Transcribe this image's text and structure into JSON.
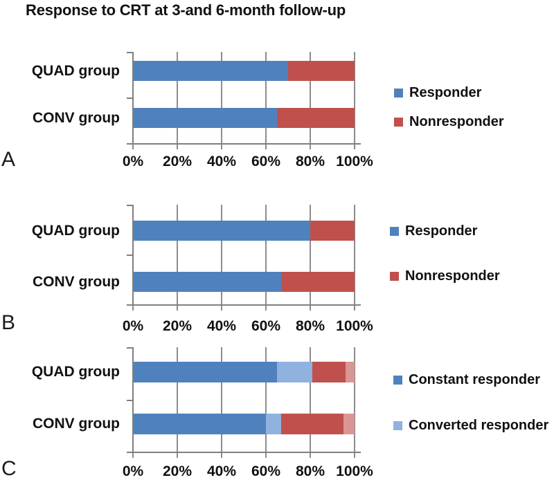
{
  "title": "Response to CRT at 3-and 6-month follow-up",
  "colors": {
    "responder_blue": "#4F81BD",
    "nonresponder_red": "#C0504D",
    "converted_light_blue": "#8FB2DE",
    "light_red": "#D99694",
    "gridline": "#8C8C8C",
    "axis": "#7F7F7F",
    "text": "#111111"
  },
  "chart_data": [
    {
      "panel": "A",
      "type": "bar",
      "orientation": "horizontal",
      "stacked": true,
      "categories": [
        "QUAD group",
        "CONV group"
      ],
      "xlim": [
        0,
        100
      ],
      "x_ticks": [
        "0%",
        "20%",
        "40%",
        "60%",
        "80%",
        "100%"
      ],
      "grid": true,
      "legend_position": "right",
      "series": [
        {
          "name": "Responder",
          "color": "#4F81BD",
          "values": [
            70,
            65
          ]
        },
        {
          "name": "Nonresponder",
          "color": "#C0504D",
          "values": [
            30,
            35
          ]
        }
      ],
      "legend": [
        {
          "label": "Responder",
          "color": "#4F81BD"
        },
        {
          "label": "Nonresponder",
          "color": "#C0504D"
        }
      ]
    },
    {
      "panel": "B",
      "type": "bar",
      "orientation": "horizontal",
      "stacked": true,
      "categories": [
        "QUAD group",
        "CONV group"
      ],
      "xlim": [
        0,
        100
      ],
      "x_ticks": [
        "0%",
        "20%",
        "40%",
        "60%",
        "80%",
        "100%"
      ],
      "grid": true,
      "legend_position": "right",
      "series": [
        {
          "name": "Responder",
          "color": "#4F81BD",
          "values": [
            80,
            67
          ]
        },
        {
          "name": "Nonresponder",
          "color": "#C0504D",
          "values": [
            20,
            33
          ]
        }
      ],
      "legend": [
        {
          "label": "Responder",
          "color": "#4F81BD"
        },
        {
          "label": "Nonresponder",
          "color": "#C0504D"
        }
      ]
    },
    {
      "panel": "C",
      "type": "bar",
      "orientation": "horizontal",
      "stacked": true,
      "categories": [
        "QUAD group",
        "CONV group"
      ],
      "xlim": [
        0,
        100
      ],
      "x_ticks": [
        "0%",
        "20%",
        "40%",
        "60%",
        "80%",
        "100%"
      ],
      "grid": true,
      "legend_position": "right",
      "series": [
        {
          "name": "Constant responder",
          "color": "#4F81BD",
          "values": [
            65,
            60
          ]
        },
        {
          "name": "Converted responder",
          "color": "#8FB2DE",
          "values": [
            16,
            7
          ]
        },
        {
          "name": "unlabeled dark red segment",
          "color": "#C0504D",
          "values": [
            15,
            28
          ]
        },
        {
          "name": "unlabeled light red segment",
          "color": "#D99694",
          "values": [
            4,
            5
          ]
        }
      ],
      "legend": [
        {
          "label": "Constant responder",
          "color": "#4F81BD"
        },
        {
          "label": "Converted responder",
          "color": "#8FB2DE"
        }
      ]
    }
  ]
}
